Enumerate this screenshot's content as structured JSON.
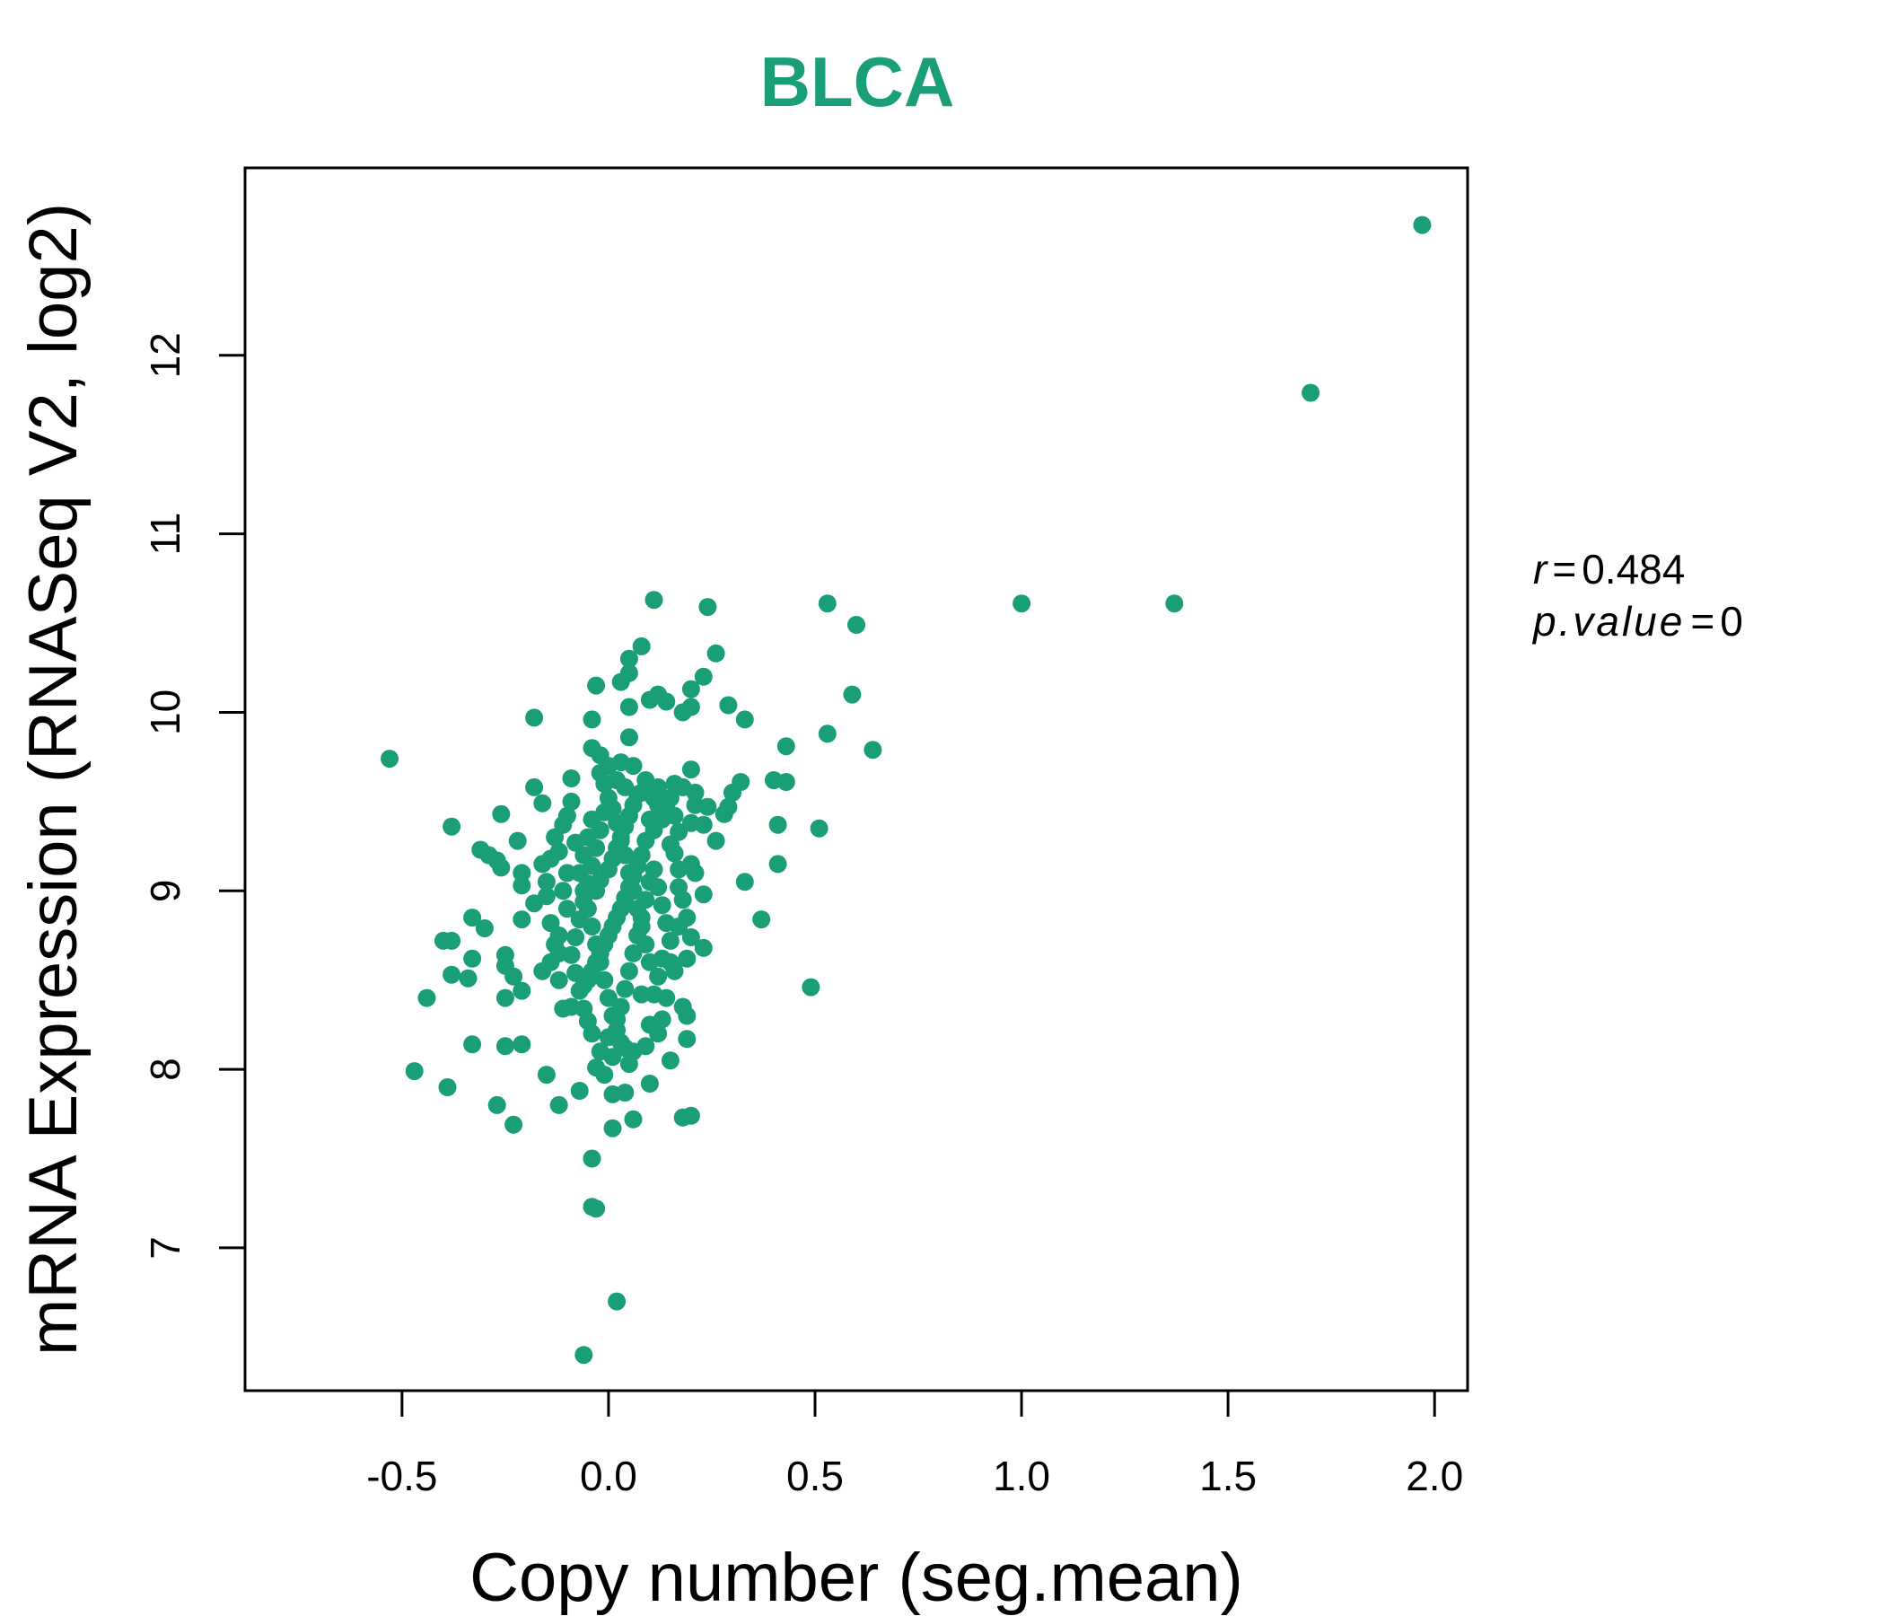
{
  "chart_data": {
    "type": "scatter",
    "title": "BLCA",
    "xlabel": "Copy number (seg.mean)",
    "ylabel": "mRNA Expression (RNASeq V2, log2)",
    "xlim": [
      -0.88,
      2.08
    ],
    "ylim": [
      6.2,
      13.05
    ],
    "xticks": [
      -0.5,
      0.0,
      0.5,
      1.0,
      1.5,
      2.0
    ],
    "xtick_labels": [
      "-0.5",
      "0.0",
      "0.5",
      "1.0",
      "1.5",
      "2.0"
    ],
    "yticks": [
      7,
      8,
      9,
      10,
      11,
      12
    ],
    "ytick_labels": [
      "7",
      "8",
      "9",
      "10",
      "11",
      "12"
    ],
    "grid": false,
    "point_color": "#1a9e77",
    "annotations": {
      "r_symbol": "r",
      "r_value": "0.484",
      "p_symbol": "p.value",
      "p_value": "0",
      "equals": "="
    },
    "points": [
      [
        1.97,
        12.73
      ],
      [
        1.7,
        11.79
      ],
      [
        1.37,
        10.61
      ],
      [
        1.0,
        10.61
      ],
      [
        0.53,
        10.61
      ],
      [
        0.6,
        10.49
      ],
      [
        0.64,
        9.79
      ],
      [
        0.59,
        10.1
      ],
      [
        0.53,
        9.88
      ],
      [
        0.43,
        9.81
      ],
      [
        0.43,
        9.61
      ],
      [
        0.51,
        9.35
      ],
      [
        0.41,
        9.37
      ],
      [
        0.4,
        9.62
      ],
      [
        0.41,
        9.15
      ],
      [
        0.37,
        8.84
      ],
      [
        0.33,
        9.05
      ],
      [
        0.49,
        8.46
      ],
      [
        0.33,
        9.96
      ],
      [
        0.29,
        10.04
      ],
      [
        0.26,
        10.33
      ],
      [
        0.24,
        10.59
      ],
      [
        0.23,
        10.2
      ],
      [
        0.2,
        10.13
      ],
      [
        0.18,
        10.0
      ],
      [
        0.2,
        10.03
      ],
      [
        0.11,
        10.63
      ],
      [
        0.12,
        10.1
      ],
      [
        0.1,
        10.07
      ],
      [
        0.14,
        10.06
      ],
      [
        0.08,
        10.37
      ],
      [
        0.05,
        10.3
      ],
      [
        0.05,
        10.22
      ],
      [
        0.03,
        10.17
      ],
      [
        -0.03,
        10.15
      ],
      [
        0.05,
        10.03
      ],
      [
        -0.04,
        9.96
      ],
      [
        0.05,
        9.86
      ],
      [
        -0.04,
        9.8
      ],
      [
        -0.02,
        9.76
      ],
      [
        -0.18,
        9.97
      ],
      [
        -0.53,
        9.74
      ],
      [
        -0.38,
        9.36
      ],
      [
        -0.26,
        9.43
      ],
      [
        -0.22,
        9.28
      ],
      [
        -0.31,
        9.23
      ],
      [
        -0.29,
        9.2
      ],
      [
        -0.27,
        9.17
      ],
      [
        -0.26,
        9.13
      ],
      [
        -0.21,
        9.1
      ],
      [
        -0.21,
        9.03
      ],
      [
        -0.18,
        9.58
      ],
      [
        -0.16,
        9.49
      ],
      [
        -0.09,
        9.63
      ],
      [
        -0.1,
        9.42
      ],
      [
        -0.11,
        9.37
      ],
      [
        -0.12,
        9.22
      ],
      [
        -0.14,
        9.18
      ],
      [
        -0.08,
        9.27
      ],
      [
        -0.33,
        8.85
      ],
      [
        -0.3,
        8.79
      ],
      [
        -0.38,
        8.72
      ],
      [
        -0.4,
        8.72
      ],
      [
        -0.33,
        8.62
      ],
      [
        -0.38,
        8.53
      ],
      [
        -0.34,
        8.51
      ],
      [
        -0.25,
        8.64
      ],
      [
        -0.25,
        8.58
      ],
      [
        -0.23,
        8.52
      ],
      [
        -0.21,
        8.44
      ],
      [
        -0.25,
        8.4
      ],
      [
        -0.21,
        8.84
      ],
      [
        -0.18,
        8.93
      ],
      [
        -0.15,
        8.97
      ],
      [
        -0.14,
        8.82
      ],
      [
        -0.1,
        8.9
      ],
      [
        -0.12,
        8.65
      ],
      [
        -0.16,
        8.55
      ],
      [
        -0.12,
        8.5
      ],
      [
        -0.11,
        8.34
      ],
      [
        -0.09,
        8.35
      ],
      [
        -0.06,
        8.47
      ],
      [
        -0.44,
        8.4
      ],
      [
        -0.33,
        8.14
      ],
      [
        -0.25,
        8.13
      ],
      [
        -0.21,
        8.14
      ],
      [
        -0.47,
        7.99
      ],
      [
        -0.39,
        7.9
      ],
      [
        -0.27,
        7.8
      ],
      [
        -0.23,
        7.69
      ],
      [
        -0.15,
        7.97
      ],
      [
        -0.12,
        7.8
      ],
      [
        -0.07,
        7.88
      ],
      [
        -0.03,
        8.01
      ],
      [
        -0.01,
        7.97
      ],
      [
        0.01,
        7.86
      ],
      [
        0.04,
        7.87
      ],
      [
        0.01,
        7.67
      ],
      [
        0.06,
        7.72
      ],
      [
        -0.04,
        7.5
      ],
      [
        -0.04,
        7.23
      ],
      [
        -0.03,
        7.22
      ],
      [
        0.02,
        6.7
      ],
      [
        -0.06,
        6.4
      ],
      [
        0.05,
        8.03
      ],
      [
        0.03,
        8.15
      ],
      [
        0.01,
        8.07
      ],
      [
        0.08,
        8.42
      ],
      [
        0.09,
        8.13
      ],
      [
        0.1,
        8.25
      ],
      [
        0.12,
        8.2
      ],
      [
        0.15,
        8.05
      ],
      [
        0.19,
        8.17
      ],
      [
        0.19,
        8.3
      ],
      [
        0.18,
        8.35
      ],
      [
        0.1,
        7.92
      ],
      [
        0.18,
        7.73
      ],
      [
        0.2,
        7.74
      ],
      [
        0.23,
        8.68
      ],
      [
        0.2,
        8.74
      ],
      [
        0.15,
        8.6
      ],
      [
        0.17,
        8.8
      ],
      [
        0.19,
        8.85
      ],
      [
        0.23,
        8.98
      ],
      [
        0.21,
        9.1
      ],
      [
        0.2,
        9.15
      ],
      [
        0.16,
        9.21
      ],
      [
        0.15,
        9.26
      ],
      [
        0.17,
        9.33
      ],
      [
        0.2,
        9.38
      ],
      [
        0.21,
        9.48
      ],
      [
        0.23,
        9.37
      ],
      [
        0.24,
        9.47
      ],
      [
        0.26,
        9.28
      ],
      [
        0.28,
        9.43
      ],
      [
        0.29,
        9.47
      ],
      [
        0.3,
        9.55
      ],
      [
        0.32,
        9.61
      ],
      [
        0.2,
        9.68
      ],
      [
        0.21,
        9.55
      ],
      [
        0.18,
        9.58
      ],
      [
        0.16,
        9.6
      ],
      [
        0.12,
        9.58
      ],
      [
        0.12,
        9.48
      ],
      [
        0.1,
        9.4
      ],
      [
        0.11,
        9.34
      ],
      [
        0.09,
        9.28
      ],
      [
        0.08,
        9.2
      ],
      [
        0.07,
        9.14
      ],
      [
        0.06,
        9.08
      ],
      [
        0.05,
        9.02
      ],
      [
        0.04,
        8.96
      ],
      [
        0.03,
        8.9
      ],
      [
        0.02,
        8.85
      ],
      [
        0.01,
        8.8
      ],
      [
        0.0,
        8.75
      ],
      [
        -0.01,
        8.7
      ],
      [
        -0.02,
        8.65
      ],
      [
        -0.03,
        8.6
      ],
      [
        -0.04,
        8.55
      ],
      [
        -0.05,
        8.5
      ],
      [
        -0.03,
        9.0
      ],
      [
        -0.02,
        9.06
      ],
      [
        0.0,
        9.12
      ],
      [
        0.01,
        9.18
      ],
      [
        0.02,
        9.24
      ],
      [
        0.03,
        9.3
      ],
      [
        0.04,
        9.36
      ],
      [
        0.05,
        9.42
      ],
      [
        0.06,
        9.48
      ],
      [
        0.07,
        9.54
      ],
      [
        -0.01,
        9.6
      ],
      [
        -0.02,
        9.66
      ],
      [
        0.0,
        9.7
      ],
      [
        0.02,
        9.62
      ],
      [
        0.04,
        9.58
      ],
      [
        -0.04,
        9.4
      ],
      [
        -0.05,
        9.3
      ],
      [
        -0.06,
        9.2
      ],
      [
        -0.07,
        9.1
      ],
      [
        -0.06,
        9.0
      ],
      [
        -0.05,
        8.9
      ],
      [
        -0.04,
        8.8
      ],
      [
        -0.03,
        8.7
      ],
      [
        -0.02,
        8.6
      ],
      [
        -0.01,
        8.5
      ],
      [
        0.0,
        8.4
      ],
      [
        0.01,
        8.3
      ],
      [
        0.02,
        8.28
      ],
      [
        0.03,
        8.35
      ],
      [
        0.04,
        8.45
      ],
      [
        0.05,
        8.55
      ],
      [
        0.06,
        8.65
      ],
      [
        0.07,
        8.75
      ],
      [
        0.08,
        8.85
      ],
      [
        0.09,
        8.95
      ],
      [
        0.1,
        9.05
      ],
      [
        0.11,
        9.12
      ],
      [
        0.12,
        9.02
      ],
      [
        0.13,
        8.92
      ],
      [
        0.14,
        8.82
      ],
      [
        0.15,
        8.72
      ],
      [
        0.13,
        8.62
      ],
      [
        0.12,
        8.52
      ],
      [
        0.11,
        8.42
      ],
      [
        0.1,
        8.6
      ],
      [
        0.09,
        8.7
      ],
      [
        0.08,
        8.8
      ],
      [
        0.07,
        8.9
      ],
      [
        0.06,
        9.0
      ],
      [
        0.05,
        9.1
      ],
      [
        0.04,
        9.2
      ],
      [
        0.03,
        9.28
      ],
      [
        0.02,
        9.38
      ],
      [
        0.01,
        9.46
      ],
      [
        0.0,
        9.52
      ],
      [
        -0.01,
        9.44
      ],
      [
        -0.02,
        9.34
      ],
      [
        -0.03,
        9.24
      ],
      [
        -0.04,
        9.14
      ],
      [
        -0.05,
        9.04
      ],
      [
        -0.06,
        8.94
      ],
      [
        -0.07,
        8.84
      ],
      [
        -0.08,
        8.74
      ],
      [
        -0.09,
        8.64
      ],
      [
        -0.08,
        8.54
      ],
      [
        -0.07,
        8.44
      ],
      [
        -0.06,
        8.34
      ],
      [
        -0.05,
        8.27
      ],
      [
        -0.04,
        8.2
      ],
      [
        -0.02,
        8.1
      ],
      [
        0.0,
        8.18
      ],
      [
        0.02,
        8.22
      ],
      [
        0.04,
        8.12
      ],
      [
        0.06,
        8.1
      ],
      [
        -0.09,
        9.5
      ],
      [
        -0.1,
        9.1
      ],
      [
        -0.11,
        9.0
      ],
      [
        -0.12,
        8.75
      ],
      [
        -0.13,
        8.7
      ],
      [
        -0.14,
        8.6
      ],
      [
        -0.15,
        9.05
      ],
      [
        -0.16,
        9.15
      ],
      [
        -0.13,
        9.3
      ],
      [
        0.14,
        9.48
      ],
      [
        0.15,
        9.52
      ],
      [
        0.16,
        9.42
      ],
      [
        0.17,
        9.02
      ],
      [
        0.18,
        8.95
      ],
      [
        0.19,
        8.62
      ],
      [
        0.14,
        8.4
      ],
      [
        0.13,
        8.28
      ],
      [
        0.16,
        8.55
      ],
      [
        0.17,
        9.12
      ],
      [
        0.08,
        9.55
      ],
      [
        0.09,
        9.62
      ],
      [
        0.11,
        9.52
      ],
      [
        0.13,
        9.4
      ],
      [
        0.06,
        9.7
      ],
      [
        0.03,
        9.72
      ]
    ]
  }
}
